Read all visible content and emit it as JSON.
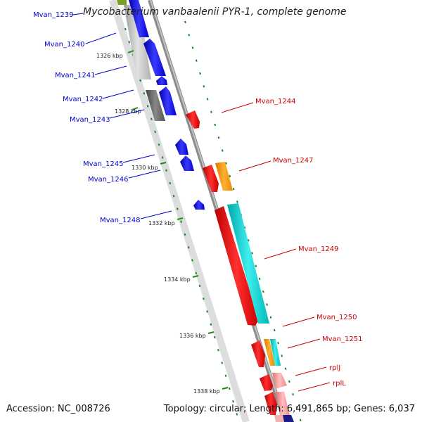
{
  "title": "Mycobacterium vanbaalenii PYR-1, complete genome",
  "footer": {
    "accession": "Accession: NC_008726",
    "summary": "Topology: circular; Length: 6,491,865 bp; Genes: 6,037"
  },
  "kbp_labels": [
    "1326 kbp",
    "1328 kbp",
    "1330 kbp",
    "1332 kbp",
    "1334 kbp",
    "1336 kbp",
    "1338 kbp"
  ],
  "left_genes": [
    "Mvan_1239",
    "Mvan_1240",
    "Mvan_1241",
    "Mvan_1242",
    "Mvan_1243",
    "Mvan_1245",
    "Mvan_1246",
    "Mvan_1248"
  ],
  "right_genes": [
    "Mvan_1244",
    "Mvan_1247",
    "Mvan_1249",
    "Mvan_1250",
    "Mvan_1251",
    "rplJ",
    "rplL"
  ],
  "colors": {
    "backbone": "#8c8c8c",
    "cds_forward": "#0000ee",
    "cds_reverse": "#ee0000",
    "orange": "#ff9900",
    "cyan": "#00cccc",
    "grid_dash": "#1a8a1a",
    "label_blue": "#0000cc",
    "label_red": "#cc0000"
  }
}
